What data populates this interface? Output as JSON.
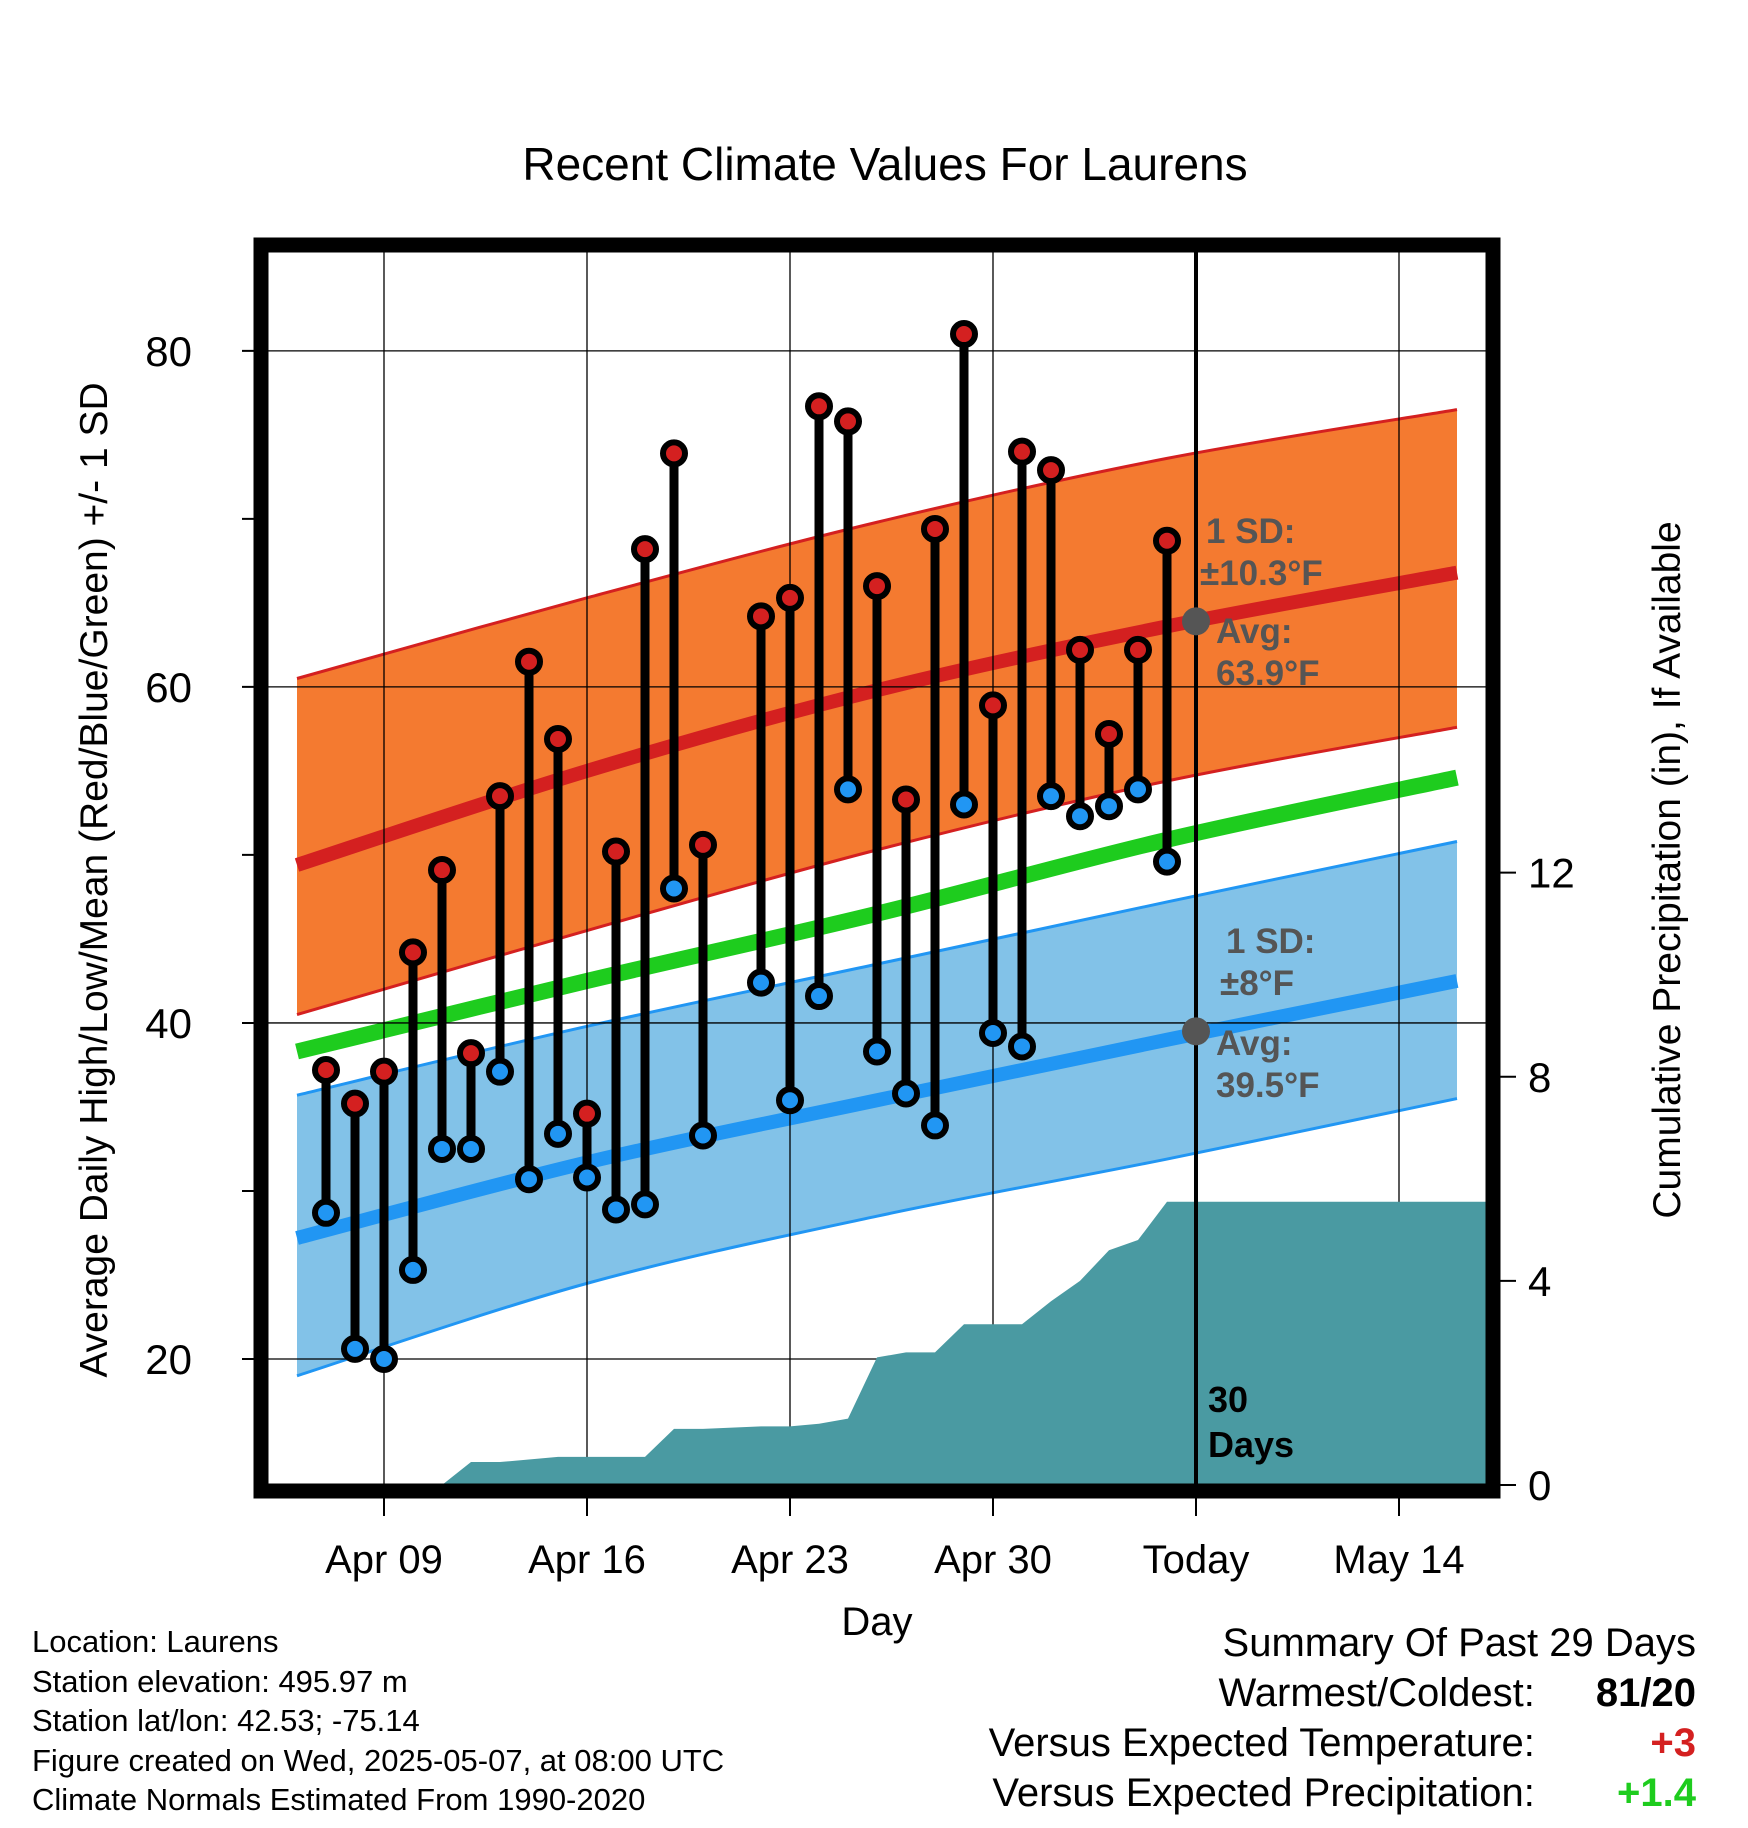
{
  "chart_data": {
    "type": "line",
    "title": "Recent Climate Values For Laurens",
    "xlabel": "Day",
    "ylabel_left": "Average Daily High/Low/Mean (Red/Blue/Green) +/- 1 SD",
    "ylabel_right": "Cumulative Precipitation (in), If Available",
    "left_axis": {
      "range": [
        12.5,
        86.3
      ],
      "ticks": [
        20,
        40,
        60,
        80
      ],
      "minor_ticks": [
        30,
        50,
        70
      ]
    },
    "right_axis": {
      "range": [
        0,
        24.3
      ],
      "ticks": [
        0,
        4,
        8,
        12
      ]
    },
    "x_range": [
      "2025-04-05",
      "2025-05-17"
    ],
    "x_ticks": [
      {
        "date": "2025-04-09",
        "label": "Apr 09"
      },
      {
        "date": "2025-04-16",
        "label": "Apr 16"
      },
      {
        "date": "2025-04-23",
        "label": "Apr 23"
      },
      {
        "date": "2025-04-30",
        "label": "Apr 30"
      },
      {
        "date": "2025-05-07",
        "label": "Today"
      },
      {
        "date": "2025-05-14",
        "label": "May 14"
      }
    ],
    "today": "2025-05-07",
    "today_label": [
      "30",
      "Days"
    ],
    "normals": {
      "dates": [
        "2025-04-06",
        "2025-04-16",
        "2025-04-26",
        "2025-05-06",
        "2025-05-16"
      ],
      "high_mean": [
        49.4,
        55.0,
        59.8,
        63.6,
        66.8
      ],
      "high_upper": [
        60.5,
        65.3,
        69.8,
        73.6,
        76.5
      ],
      "high_lower": [
        40.5,
        45.5,
        50.3,
        54.4,
        57.6
      ],
      "mean": [
        38.3,
        42.5,
        46.5,
        50.9,
        54.6
      ],
      "low_mean": [
        27.2,
        31.7,
        35.4,
        39.0,
        42.5
      ],
      "low_upper": [
        35.7,
        39.8,
        43.5,
        47.2,
        50.8
      ],
      "low_lower": [
        19.0,
        24.5,
        28.5,
        31.9,
        35.5
      ]
    },
    "series": [
      {
        "name": "Daily High",
        "color": "#d42020",
        "x": [
          "2025-04-07",
          "2025-04-08",
          "2025-04-09",
          "2025-04-10",
          "2025-04-11",
          "2025-04-12",
          "2025-04-13",
          "2025-04-14",
          "2025-04-15",
          "2025-04-16",
          "2025-04-17",
          "2025-04-18",
          "2025-04-19",
          "2025-04-20",
          "2025-04-22",
          "2025-04-23",
          "2025-04-24",
          "2025-04-25",
          "2025-04-26",
          "2025-04-27",
          "2025-04-28",
          "2025-04-29",
          "2025-04-30",
          "2025-05-01",
          "2025-05-02",
          "2025-05-03",
          "2025-05-04",
          "2025-05-05",
          "2025-05-06"
        ],
        "y": [
          37.2,
          35.2,
          37.1,
          44.2,
          49.1,
          38.2,
          53.5,
          61.5,
          56.9,
          34.6,
          50.2,
          68.2,
          73.9,
          50.6,
          64.2,
          65.3,
          76.7,
          75.8,
          66.0,
          53.3,
          69.4,
          81.0,
          58.9,
          74.0,
          72.9,
          62.2,
          57.2,
          62.2,
          68.7
        ]
      },
      {
        "name": "Daily Low",
        "color": "#2196f3",
        "x": [
          "2025-04-07",
          "2025-04-08",
          "2025-04-09",
          "2025-04-10",
          "2025-04-11",
          "2025-04-12",
          "2025-04-13",
          "2025-04-14",
          "2025-04-15",
          "2025-04-16",
          "2025-04-17",
          "2025-04-18",
          "2025-04-19",
          "2025-04-20",
          "2025-04-22",
          "2025-04-23",
          "2025-04-24",
          "2025-04-25",
          "2025-04-26",
          "2025-04-27",
          "2025-04-28",
          "2025-04-29",
          "2025-04-30",
          "2025-05-01",
          "2025-05-02",
          "2025-05-03",
          "2025-05-04",
          "2025-05-05",
          "2025-05-06"
        ],
        "y": [
          28.7,
          20.6,
          20.0,
          25.3,
          32.5,
          32.5,
          37.1,
          30.7,
          33.4,
          30.8,
          28.9,
          29.2,
          48.0,
          33.3,
          42.4,
          35.4,
          41.6,
          53.9,
          38.3,
          35.8,
          33.9,
          53.0,
          39.4,
          38.6,
          53.5,
          52.3,
          52.9,
          53.9,
          49.6
        ]
      },
      {
        "name": "Cumulative Precipitation",
        "color": "#4a9aa2",
        "x": [
          "2025-04-11",
          "2025-04-12",
          "2025-04-13",
          "2025-04-15",
          "2025-04-16",
          "2025-04-18",
          "2025-04-19",
          "2025-04-20",
          "2025-04-22",
          "2025-04-23",
          "2025-04-24",
          "2025-04-25",
          "2025-04-26",
          "2025-04-27",
          "2025-04-28",
          "2025-04-29",
          "2025-04-30",
          "2025-05-01",
          "2025-05-02",
          "2025-05-03",
          "2025-05-04",
          "2025-05-05",
          "2025-05-06",
          "2025-05-17"
        ],
        "y": [
          0.0,
          0.45,
          0.45,
          0.55,
          0.55,
          0.55,
          1.1,
          1.1,
          1.15,
          1.15,
          1.2,
          1.3,
          2.5,
          2.6,
          2.6,
          3.15,
          3.15,
          3.15,
          3.6,
          4.0,
          4.6,
          4.8,
          5.55,
          5.55
        ]
      }
    ],
    "annotations": {
      "high": {
        "sd_label": "1 SD:",
        "sd_value": "±10.3°F",
        "avg_label": "Avg:",
        "avg_value": "63.9°F",
        "avg": 63.9
      },
      "low": {
        "sd_label": "1 SD:",
        "sd_value": "±8°F",
        "avg_label": "Avg:",
        "avg_value": "39.5°F",
        "avg": 39.5
      }
    },
    "colors": {
      "high_band": "#f47a30",
      "high_line": "#d42020",
      "low_band": "#82c2e8",
      "low_line": "#2196f3",
      "mean_line": "#1ecc1e",
      "precip": "#4a9aa2",
      "annotation_text": "#555555"
    }
  },
  "info": {
    "location": "Location: Laurens",
    "elevation": "Station elevation: 495.97 m",
    "latlon": "Station lat/lon: 42.53; -75.14",
    "created": "Figure created on Wed, 2025-05-07, at 08:00 UTC",
    "normals": "Climate Normals Estimated From 1990-2020"
  },
  "summary": {
    "title": "Summary Of Past 29 Days",
    "warmest_label": "Warmest/Coldest:",
    "warmest_value": "81/20",
    "temp_label": "Versus Expected Temperature:",
    "temp_value": "+3",
    "temp_color": "#d42020",
    "precip_label": "Versus Expected Precipitation:",
    "precip_value": "+1.4",
    "precip_color": "#1ecc1e"
  }
}
